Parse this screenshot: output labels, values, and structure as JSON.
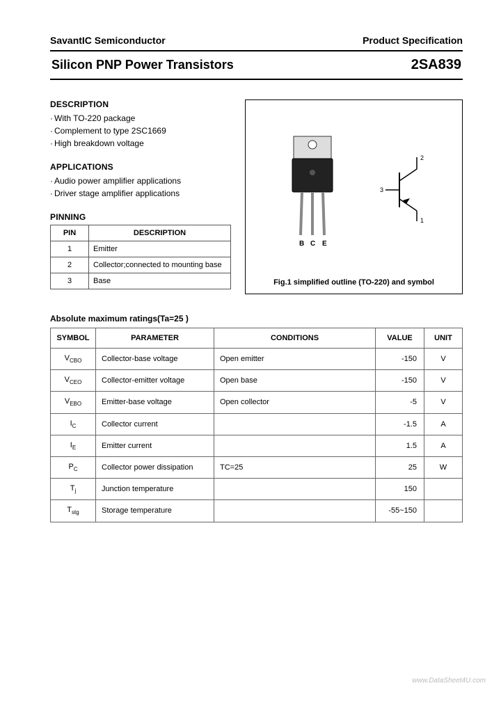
{
  "header": {
    "company": "SavantIC Semiconductor",
    "doctype": "Product Specification"
  },
  "title": {
    "left": "Silicon PNP Power Transistors",
    "right": "2SA839"
  },
  "description": {
    "heading": "DESCRIPTION",
    "items": [
      "With TO-220 package",
      "Complement to type 2SC1669",
      "High breakdown voltage"
    ]
  },
  "applications": {
    "heading": "APPLICATIONS",
    "items": [
      "Audio power amplifier applications",
      "Driver stage amplifier applications"
    ]
  },
  "pinning": {
    "heading": "PINNING",
    "col_pin": "PIN",
    "col_desc": "DESCRIPTION",
    "rows": [
      {
        "pin": "1",
        "desc": "Emitter"
      },
      {
        "pin": "2",
        "desc": "Collector;connected to mounting base"
      },
      {
        "pin": "3",
        "desc": "Base"
      }
    ]
  },
  "figure": {
    "pin_labels": {
      "b": "B",
      "c": "C",
      "e": "E"
    },
    "sym_labels": {
      "n1": "1",
      "n2": "2",
      "n3": "3"
    },
    "caption": "Fig.1 simplified outline (TO-220) and symbol"
  },
  "ratings": {
    "heading": "Absolute maximum ratings(Ta=25 )",
    "cols": {
      "symbol": "SYMBOL",
      "parameter": "PARAMETER",
      "conditions": "CONDITIONS",
      "value": "VALUE",
      "unit": "UNIT"
    },
    "rows": [
      {
        "sym": "V",
        "sub": "CBO",
        "param": "Collector-base voltage",
        "cond": "Open emitter",
        "val": "-150",
        "unit": "V"
      },
      {
        "sym": "V",
        "sub": "CEO",
        "param": "Collector-emitter voltage",
        "cond": "Open base",
        "val": "-150",
        "unit": "V"
      },
      {
        "sym": "V",
        "sub": "EBO",
        "param": "Emitter-base voltage",
        "cond": "Open collector",
        "val": "-5",
        "unit": "V"
      },
      {
        "sym": "I",
        "sub": "C",
        "param": "Collector current",
        "cond": "",
        "val": "-1.5",
        "unit": "A"
      },
      {
        "sym": "I",
        "sub": "E",
        "param": "Emitter current",
        "cond": "",
        "val": "1.5",
        "unit": "A"
      },
      {
        "sym": "P",
        "sub": "C",
        "param": "Collector power dissipation",
        "cond": "TC=25",
        "val": "25",
        "unit": "W"
      },
      {
        "sym": "T",
        "sub": "j",
        "param": "Junction temperature",
        "cond": "",
        "val": "150",
        "unit": ""
      },
      {
        "sym": "T",
        "sub": "stg",
        "param": "Storage temperature",
        "cond": "",
        "val": "-55~150",
        "unit": ""
      }
    ]
  },
  "watermark": "www.DataSheet4U.com",
  "colors": {
    "text": "#000000",
    "border": "#666666",
    "bg": "#ffffff"
  }
}
